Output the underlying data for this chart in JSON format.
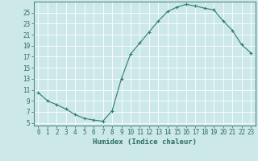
{
  "x": [
    0,
    1,
    2,
    3,
    4,
    5,
    6,
    7,
    8,
    9,
    10,
    11,
    12,
    13,
    14,
    15,
    16,
    17,
    18,
    19,
    20,
    21,
    22,
    23
  ],
  "y": [
    10.5,
    9.0,
    8.3,
    7.5,
    6.5,
    5.8,
    5.5,
    5.3,
    7.2,
    13.0,
    17.5,
    19.5,
    21.5,
    23.5,
    25.2,
    26.0,
    26.5,
    26.2,
    25.8,
    25.5,
    23.5,
    21.8,
    19.2,
    17.7
  ],
  "line_color": "#2e7d6e",
  "marker": "+",
  "markersize": 3,
  "markeredgewidth": 0.8,
  "linewidth": 0.8,
  "xlabel": "Humidex (Indice chaleur)",
  "background_color": "#cce8e8",
  "grid_color": "#ffffff",
  "xlim": [
    -0.5,
    23.5
  ],
  "ylim": [
    4.5,
    27
  ],
  "yticks": [
    5,
    7,
    9,
    11,
    13,
    15,
    17,
    19,
    21,
    23,
    25
  ],
  "xticks": [
    0,
    1,
    2,
    3,
    4,
    5,
    6,
    7,
    8,
    9,
    10,
    11,
    12,
    13,
    14,
    15,
    16,
    17,
    18,
    19,
    20,
    21,
    22,
    23
  ],
  "tick_fontsize": 5.5,
  "xlabel_fontsize": 6.5,
  "tick_color": "#2e6e60",
  "axis_color": "#2e6e60",
  "label_color": "#2e6e60"
}
